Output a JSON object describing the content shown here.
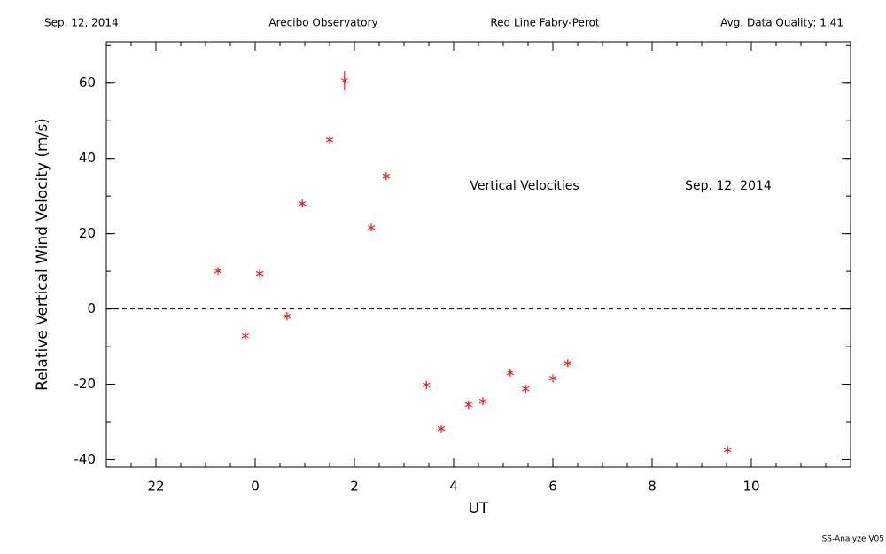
{
  "chart_data": {
    "type": "scatter",
    "header": [
      "Sep. 12, 2014",
      "Arecibo Observatory",
      "Red Line Fabry-Perot",
      "Avg. Data Quality: 1.41"
    ],
    "xlabel": "UT",
    "ylabel": "Relative Vertical Wind Velocity (m/s)",
    "annotations": [
      "Vertical Velocities",
      "Sep. 12, 2014"
    ],
    "footer": "SS-Analyze V05",
    "color": "#ff0000",
    "x": [
      -0.75,
      -0.2,
      0.09,
      0.64,
      0.95,
      1.5,
      1.8,
      2.34,
      2.64,
      3.45,
      3.75,
      4.3,
      4.59,
      5.14,
      5.45,
      6.0,
      6.3,
      9.52
    ],
    "values": [
      10.1,
      -7.1,
      9.4,
      -1.9,
      28,
      44.9,
      60.7,
      21.6,
      35.3,
      -20.2,
      -31.8,
      -25.4,
      -24.5,
      -16.9,
      -21.2,
      -18.4,
      -14.4,
      -37.4
    ],
    "errors": [
      1,
      1,
      1,
      1,
      1,
      1,
      2.5,
      1,
      1,
      1,
      1,
      1,
      1,
      1,
      1,
      1,
      1,
      1
    ],
    "hline": 0,
    "xlim": [
      -3,
      12
    ],
    "xticks": [
      {
        "value": -2,
        "label": "22"
      },
      0,
      2,
      4,
      6,
      8,
      10
    ],
    "ylim": [
      -42,
      71
    ],
    "yticks": [
      -40,
      -20,
      0,
      20,
      40,
      60
    ]
  }
}
